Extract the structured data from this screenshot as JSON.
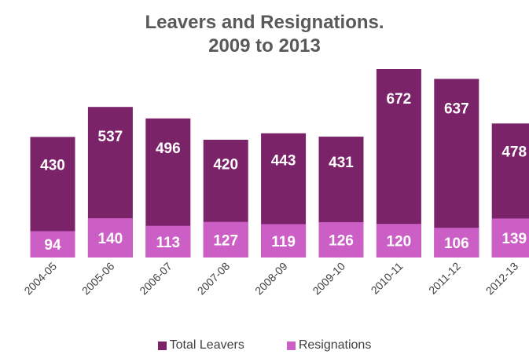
{
  "chart_data": {
    "type": "bar",
    "title_lines": [
      "Leavers and Resignations.",
      "2009 to 2013"
    ],
    "categories": [
      "2004-05",
      "2005-06",
      "2006-07",
      "2007-08",
      "2008-09",
      "2009-10",
      "2010-11",
      "2011-12",
      "2012-13"
    ],
    "series": [
      {
        "name": "Total Leavers",
        "values": [
          430,
          537,
          496,
          420,
          443,
          431,
          672,
          637,
          478
        ],
        "color": "#7b2369"
      },
      {
        "name": "Resignations",
        "values": [
          94,
          140,
          113,
          127,
          119,
          126,
          120,
          106,
          139
        ],
        "color": "#cc5fc6"
      }
    ],
    "overlapping": true,
    "data_labels": true,
    "grid": false,
    "legend_position": "bottom",
    "ylim": [
      0,
      700
    ],
    "label_color": "#ffffff"
  }
}
